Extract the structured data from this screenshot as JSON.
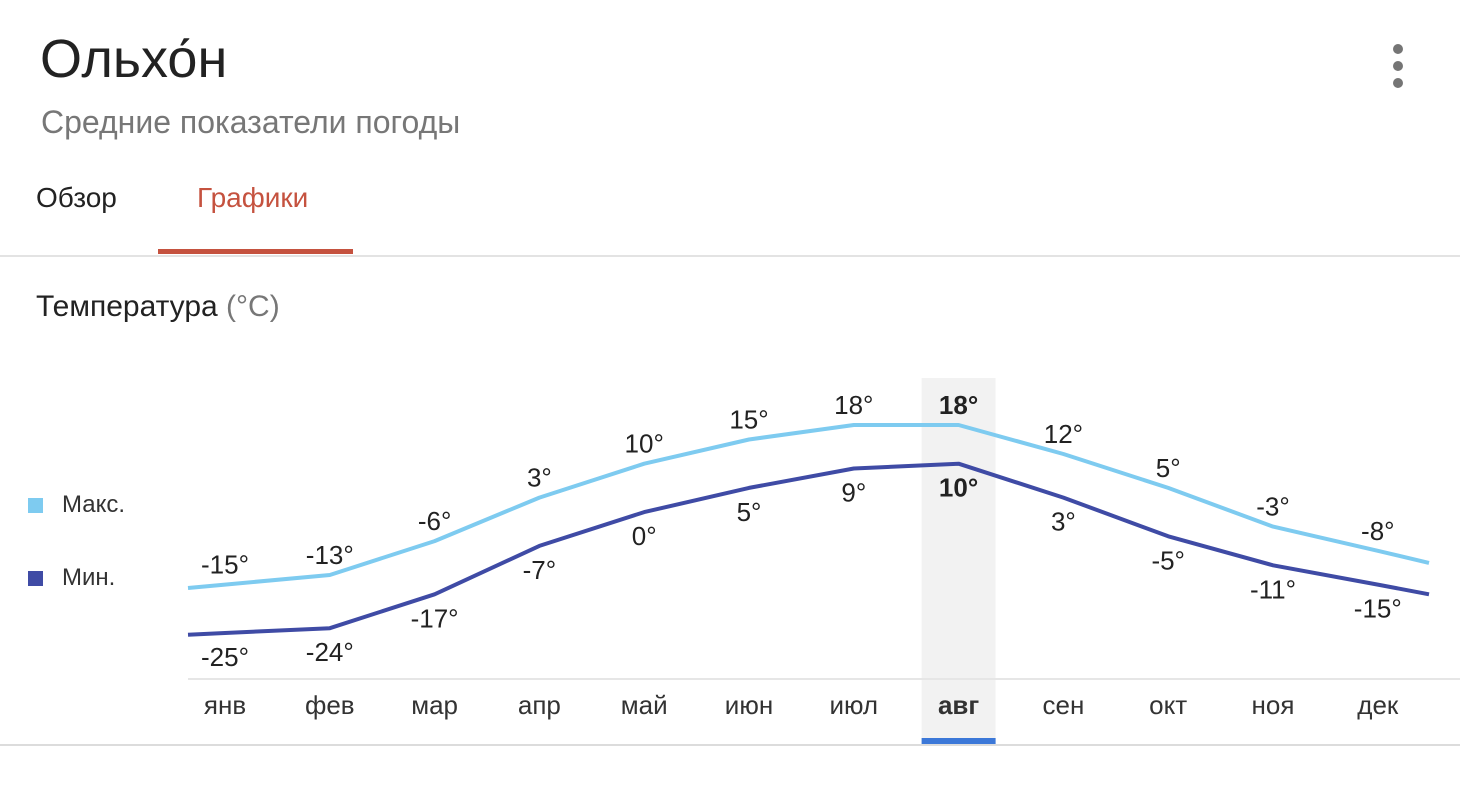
{
  "header": {
    "title": "Ольхо́н",
    "subtitle": "Средние показатели погоды",
    "more_icon": "more-vert-icon"
  },
  "tabs": [
    {
      "label": "Обзор",
      "active": false
    },
    {
      "label": "Графики",
      "active": true
    }
  ],
  "section": {
    "title": "Температура",
    "unit": "(°C)"
  },
  "colors": {
    "max_series": "#7ecbf0",
    "min_series": "#3f4ba5",
    "accent_tab": "#c5523f",
    "selected_month": "#3c78d8",
    "selected_band": "#f2f2f2"
  },
  "chart_data": {
    "type": "line",
    "categories": [
      "янв",
      "фев",
      "мар",
      "апр",
      "май",
      "июн",
      "июл",
      "авг",
      "сен",
      "окт",
      "ноя",
      "дек"
    ],
    "series": [
      {
        "name": "Макс.",
        "values": [
          -15,
          -13,
          -6,
          3,
          10,
          15,
          18,
          18,
          12,
          5,
          -3,
          -8
        ]
      },
      {
        "name": "Мин.",
        "values": [
          -25,
          -24,
          -17,
          -7,
          0,
          5,
          9,
          10,
          3,
          -5,
          -11,
          -15
        ]
      }
    ],
    "value_suffix": "°",
    "selected_index": 7,
    "legend_position": "left",
    "grid": false
  }
}
